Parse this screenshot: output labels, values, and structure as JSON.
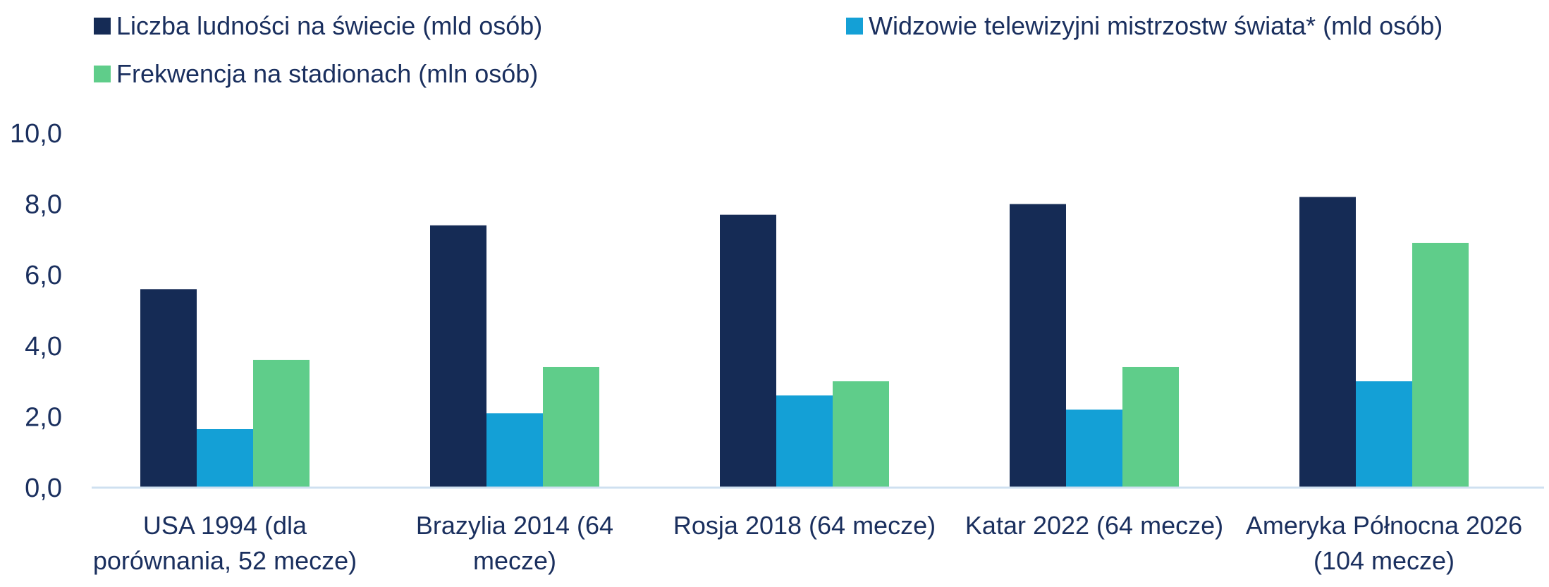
{
  "chart_data": {
    "type": "bar",
    "categories": [
      [
        "USA 1994 (dla",
        "porównania, 52 mecze)"
      ],
      [
        "Brazylia 2014 (64",
        "mecze)"
      ],
      [
        "Rosja 2018 (64 mecze)"
      ],
      [
        "Katar 2022 (64 mecze)"
      ],
      [
        "Ameryka Północna 2026",
        "(104 mecze)"
      ]
    ],
    "series": [
      {
        "name": "Liczba ludności na świecie (mld osób)",
        "color": "#152b55",
        "values": [
          5.6,
          7.4,
          7.7,
          8.0,
          8.2
        ]
      },
      {
        "name": "Widzowie telewizyjni mistrzostw świata* (mld osób)",
        "color": "#14a0d6",
        "values": [
          1.65,
          2.1,
          2.6,
          2.2,
          3.0
        ]
      },
      {
        "name": "Frekwencja na stadionach (mln osób)",
        "color": "#5fcd8a",
        "values": [
          3.6,
          3.4,
          3.0,
          3.4,
          6.9
        ]
      }
    ],
    "yticks": [
      "0,0",
      "2,0",
      "4,0",
      "6,0",
      "8,0",
      "10,0"
    ],
    "ylim": [
      0,
      10
    ],
    "legend": "top",
    "grid": false
  }
}
